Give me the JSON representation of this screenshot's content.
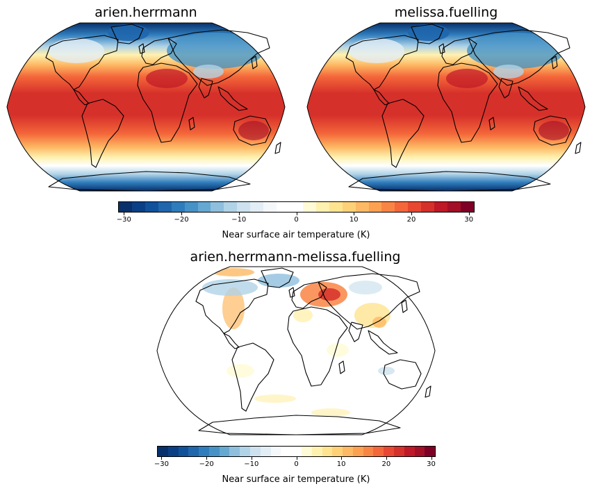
{
  "panels": [
    {
      "title": "arien.herrmann",
      "field": "absolute"
    },
    {
      "title": "melissa.fuelling",
      "field": "absolute"
    },
    {
      "title": "arien.herrmann-melissa.fuelling",
      "field": "difference"
    }
  ],
  "colorbars": [
    {
      "label": "Near surface air temperature (K)",
      "ticks": [
        -30,
        -20,
        -10,
        0,
        10,
        20,
        30
      ],
      "tick_labels": [
        "−30",
        "−20",
        "−10",
        "0",
        "10",
        "20",
        "30"
      ],
      "vmin": -31,
      "vmax": 31
    },
    {
      "label": "Near surface air temperature (K)",
      "ticks": [
        -30,
        -20,
        -10,
        0,
        10,
        20,
        30
      ],
      "tick_labels": [
        "−30",
        "−20",
        "−10",
        "0",
        "10",
        "20",
        "30"
      ],
      "vmin": -31,
      "vmax": 31
    }
  ],
  "colormap": {
    "name": "RdYlBu_r",
    "colors": [
      "#08306b",
      "#0b3f85",
      "#10519b",
      "#1f66ad",
      "#2f7cbc",
      "#4692c6",
      "#65a8d2",
      "#8ebfdd",
      "#b0d3e7",
      "#cde2ee",
      "#e2edf5",
      "#f4f8fb",
      "#ffffff",
      "#ffffff",
      "#fffbd6",
      "#fff1b0",
      "#fee490",
      "#fed177",
      "#fdb964",
      "#fca152",
      "#f98544",
      "#f4673a",
      "#e84832",
      "#d6302a",
      "#bf1826",
      "#a30f26",
      "#7f0026"
    ]
  }
}
